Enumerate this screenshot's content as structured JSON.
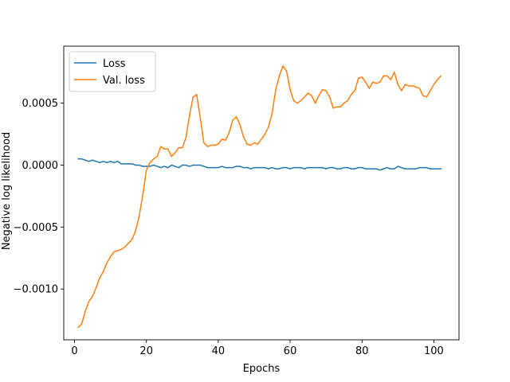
{
  "chart_data": {
    "type": "line",
    "title": "",
    "xlabel": "Epochs",
    "ylabel": "Negative log likelihood",
    "xlim": [
      -3,
      107
    ],
    "ylim": [
      -0.00141,
      0.00096
    ],
    "xticks": [
      0,
      20,
      40,
      60,
      80,
      100
    ],
    "xtick_labels": [
      "0",
      "20",
      "40",
      "60",
      "80",
      "100"
    ],
    "yticks": [
      -0.001,
      -0.0005,
      0.0,
      0.0005
    ],
    "ytick_labels": [
      "−0.0010",
      "−0.0005",
      "0.0000",
      "0.0005"
    ],
    "grid": false,
    "legend_position": "top-left",
    "series": [
      {
        "name": "Loss",
        "color": "#1f77b4",
        "x": [
          1,
          2,
          3,
          4,
          5,
          6,
          7,
          8,
          9,
          10,
          11,
          12,
          13,
          14,
          15,
          16,
          17,
          18,
          19,
          20,
          21,
          22,
          23,
          24,
          25,
          26,
          27,
          28,
          29,
          30,
          31,
          32,
          33,
          34,
          35,
          36,
          37,
          38,
          39,
          40,
          41,
          42,
          43,
          44,
          45,
          46,
          47,
          48,
          49,
          50,
          51,
          52,
          53,
          54,
          55,
          56,
          57,
          58,
          59,
          60,
          61,
          62,
          63,
          64,
          65,
          66,
          67,
          68,
          69,
          70,
          71,
          72,
          73,
          74,
          75,
          76,
          77,
          78,
          79,
          80,
          81,
          82,
          83,
          84,
          85,
          86,
          87,
          88,
          89,
          90,
          91,
          92,
          93,
          94,
          95,
          96,
          97,
          98,
          99,
          100,
          101,
          102
        ],
        "values": [
          5e-05,
          5e-05,
          4e-05,
          3e-05,
          4e-05,
          3e-05,
          2e-05,
          3e-05,
          2e-05,
          3e-05,
          2e-05,
          3e-05,
          1e-05,
          1e-05,
          1e-05,
          1e-05,
          0.0,
          0.0,
          -1e-05,
          -1e-05,
          -1e-05,
          0.0,
          -1e-05,
          -2e-05,
          -1e-05,
          -2e-05,
          0.0,
          -1e-05,
          -2e-05,
          0.0,
          0.0,
          -1e-05,
          0.0,
          0.0,
          0.0,
          -1e-05,
          -2e-05,
          -2e-05,
          -2e-05,
          -2e-05,
          -1e-05,
          -2e-05,
          -2e-05,
          -2e-05,
          -1e-05,
          -1e-05,
          -2e-05,
          -2e-05,
          -3e-05,
          -2e-05,
          -2e-05,
          -2e-05,
          -2e-05,
          -3e-05,
          -2e-05,
          -3e-05,
          -3e-05,
          -2e-05,
          -2e-05,
          -3e-05,
          -2e-05,
          -2e-05,
          -2e-05,
          -3e-05,
          -2e-05,
          -2e-05,
          -2e-05,
          -2e-05,
          -2e-05,
          -3e-05,
          -2e-05,
          -2e-05,
          -3e-05,
          -3e-05,
          -2e-05,
          -2e-05,
          -3e-05,
          -3e-05,
          -2e-05,
          -2e-05,
          -3e-05,
          -3e-05,
          -3e-05,
          -3e-05,
          -4e-05,
          -3e-05,
          -2e-05,
          -3e-05,
          -3e-05,
          -1e-05,
          -2e-05,
          -3e-05,
          -3e-05,
          -3e-05,
          -3e-05,
          -2e-05,
          -2e-05,
          -2e-05,
          -3e-05,
          -3e-05,
          -3e-05,
          -3e-05
        ]
      },
      {
        "name": "Val. loss",
        "color": "#ff7f0e",
        "x": [
          1,
          2,
          3,
          4,
          5,
          6,
          7,
          8,
          9,
          10,
          11,
          12,
          13,
          14,
          15,
          16,
          17,
          18,
          19,
          20,
          21,
          22,
          23,
          24,
          25,
          26,
          27,
          28,
          29,
          30,
          31,
          32,
          33,
          34,
          35,
          36,
          37,
          38,
          39,
          40,
          41,
          42,
          43,
          44,
          45,
          46,
          47,
          48,
          49,
          50,
          51,
          52,
          53,
          54,
          55,
          56,
          57,
          58,
          59,
          60,
          61,
          62,
          63,
          64,
          65,
          66,
          67,
          68,
          69,
          70,
          71,
          72,
          73,
          74,
          75,
          76,
          77,
          78,
          79,
          80,
          81,
          82,
          83,
          84,
          85,
          86,
          87,
          88,
          89,
          90,
          91,
          92,
          93,
          94,
          95,
          96,
          97,
          98,
          99,
          100,
          101,
          102
        ],
        "values": [
          -0.00131,
          -0.00128,
          -0.00118,
          -0.0011,
          -0.00106,
          -0.00099,
          -0.00091,
          -0.00086,
          -0.00079,
          -0.00074,
          -0.0007,
          -0.00069,
          -0.00068,
          -0.00066,
          -0.00063,
          -0.0006,
          -0.00053,
          -0.00041,
          -0.00024,
          -4e-05,
          2e-05,
          5e-05,
          7e-05,
          0.00015,
          0.00013,
          0.00013,
          7e-05,
          0.0001,
          0.00014,
          0.00014,
          0.00022,
          0.0004,
          0.00055,
          0.00057,
          0.00038,
          0.00018,
          0.00015,
          0.00016,
          0.00016,
          0.00017,
          0.00021,
          0.0002,
          0.00026,
          0.00036,
          0.00039,
          0.00033,
          0.00023,
          0.00017,
          0.00016,
          0.00018,
          0.00017,
          0.00021,
          0.00025,
          0.00031,
          0.00042,
          0.00061,
          0.00072,
          0.0008,
          0.00076,
          0.00061,
          0.00052,
          0.0005,
          0.00052,
          0.00055,
          0.00058,
          0.00056,
          0.0005,
          0.00056,
          0.00061,
          0.0006,
          0.00055,
          0.00046,
          0.00047,
          0.00047,
          0.0005,
          0.00052,
          0.00057,
          0.0006,
          0.0007,
          0.00071,
          0.00067,
          0.00062,
          0.00067,
          0.00066,
          0.00067,
          0.00072,
          0.00072,
          0.00069,
          0.00075,
          0.00065,
          0.0006,
          0.00065,
          0.00064,
          0.00064,
          0.00063,
          0.00062,
          0.00056,
          0.00055,
          0.0006,
          0.00065,
          0.00069,
          0.00072
        ]
      }
    ]
  }
}
